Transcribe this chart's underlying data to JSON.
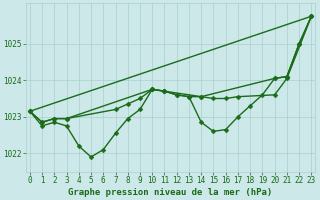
{
  "bg_color": "#cce8e8",
  "grid_color": "#aacfcf",
  "line_color": "#1a6b1a",
  "text_color": "#1a6b1a",
  "series": [
    {
      "name": "straight_line",
      "x": [
        0,
        23
      ],
      "y": [
        1023.15,
        1025.75
      ],
      "linewidth": 1.0,
      "marker": null,
      "markersize": 0
    },
    {
      "name": "upper_jagged",
      "x": [
        0,
        1,
        2,
        3,
        10,
        11,
        14,
        20,
        21,
        22,
        23
      ],
      "y": [
        1023.15,
        1022.85,
        1022.95,
        1022.95,
        1023.75,
        1023.7,
        1023.55,
        1024.05,
        1024.1,
        1025.0,
        1025.75
      ],
      "linewidth": 1.0,
      "marker": "D",
      "markersize": 2.5
    },
    {
      "name": "middle_band",
      "x": [
        0,
        1,
        2,
        3,
        7,
        8,
        9,
        10,
        11,
        12,
        13,
        14,
        15,
        16,
        17,
        20,
        21,
        23
      ],
      "y": [
        1023.15,
        1022.85,
        1022.95,
        1022.95,
        1023.2,
        1023.35,
        1023.5,
        1023.75,
        1023.7,
        1023.6,
        1023.55,
        1023.55,
        1023.5,
        1023.5,
        1023.55,
        1023.6,
        1024.05,
        1025.75
      ],
      "linewidth": 1.0,
      "marker": "D",
      "markersize": 2.5
    },
    {
      "name": "lower_oscillating",
      "x": [
        0,
        1,
        2,
        3,
        4,
        5,
        6,
        7,
        8,
        9,
        10,
        11,
        12,
        13,
        14,
        15,
        16,
        17,
        18,
        19,
        20,
        21,
        22,
        23
      ],
      "y": [
        1023.15,
        1022.75,
        1022.85,
        1022.75,
        1022.2,
        1021.9,
        1022.1,
        1022.55,
        1022.95,
        1023.2,
        1023.75,
        1023.7,
        1023.6,
        1023.55,
        1022.85,
        1022.6,
        1022.65,
        1023.0,
        1023.3,
        1023.6,
        1024.05,
        1024.1,
        1025.0,
        1025.75
      ],
      "linewidth": 1.0,
      "marker": "D",
      "markersize": 2.5
    }
  ],
  "ylabel_ticks": [
    1022,
    1023,
    1024,
    1025
  ],
  "xlim": [
    -0.3,
    23.3
  ],
  "ylim": [
    1021.5,
    1026.1
  ],
  "xlabel": "Graphe pression niveau de la mer (hPa)",
  "xlabel_fontsize": 6.5,
  "tick_fontsize": 5.5
}
